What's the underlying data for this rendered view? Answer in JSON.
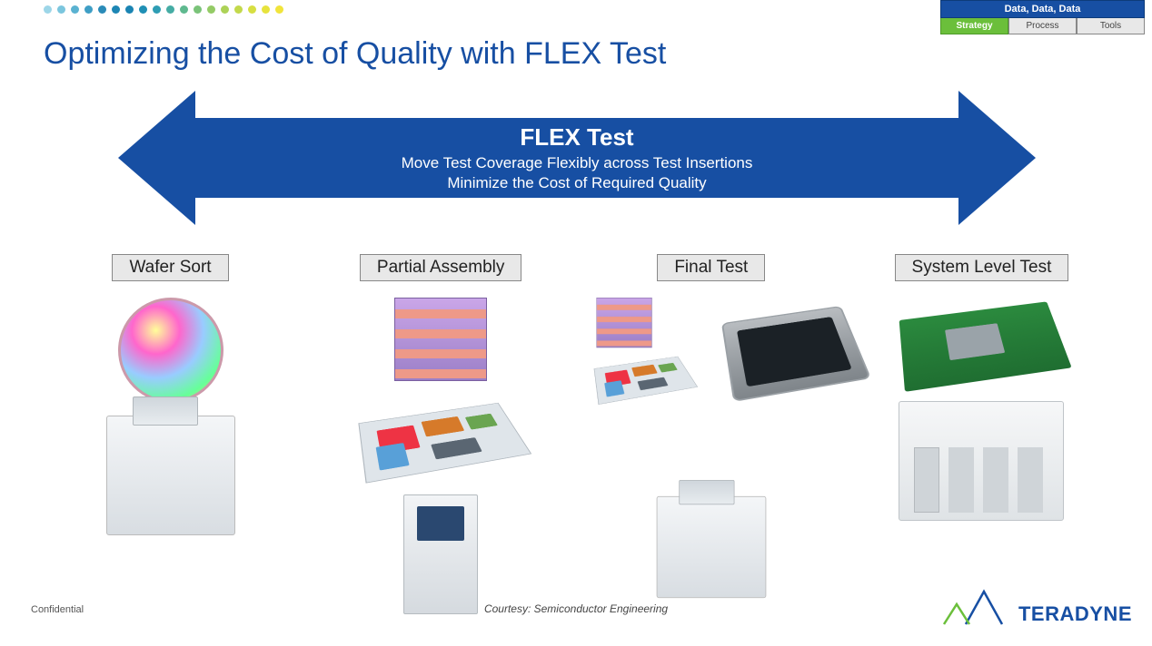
{
  "dots_colors": [
    "#9dd6e8",
    "#7bc6de",
    "#5ab2d1",
    "#3e9ec5",
    "#2a8bb8",
    "#1d86b4",
    "#1a84b3",
    "#1f8fb5",
    "#2e9db4",
    "#45aca4",
    "#5fb98f",
    "#7ac379",
    "#94cb66",
    "#add257",
    "#c3d94b",
    "#d7df42",
    "#e7e33d",
    "#f1e43b"
  ],
  "tabs": {
    "header": "Data, Data, Data",
    "items": [
      "Strategy",
      "Process",
      "Tools"
    ],
    "active_index": 0,
    "active_bg": "#6bbf3b"
  },
  "title": "Optimizing the Cost of Quality with FLEX Test",
  "title_color": "#174fa3",
  "arrow": {
    "bg": "#174fa3",
    "title": "FLEX Test",
    "line1": "Move Test Coverage Flexibly across Test Insertions",
    "line2": "Minimize the Cost of Required Quality"
  },
  "stages": [
    {
      "label": "Wafer Sort",
      "icons": [
        "wafer",
        "tester"
      ]
    },
    {
      "label": "Partial Assembly",
      "icons": [
        "stack",
        "substrate",
        "thin-tester"
      ]
    },
    {
      "label": "Final Test",
      "icons": [
        "mini-stack-substrate",
        "chip",
        "tester"
      ]
    },
    {
      "label": "System Level Test",
      "icons": [
        "board",
        "rack"
      ]
    }
  ],
  "footer": {
    "confidential": "Confidential",
    "courtesy": "Courtesy: Semiconductor Engineering",
    "logo_text": "TERADYNE"
  }
}
